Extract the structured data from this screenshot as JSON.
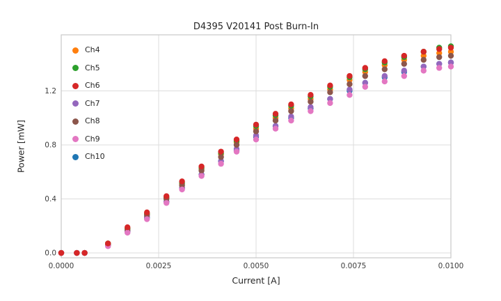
{
  "chart_data": {
    "type": "scatter",
    "title": "D4395 V20141 Post Burn-In",
    "xlabel": "Current [A]",
    "ylabel": "Power [mW]",
    "xlim": [
      0.0,
      0.01
    ],
    "ylim": [
      -0.036,
      1.615
    ],
    "grid": true,
    "legend_position": "upper-left",
    "xticks": {
      "values": [
        0.0,
        0.0025,
        0.005,
        0.0075,
        0.01
      ],
      "labels": [
        "0.0000",
        "0.0025",
        "0.0050",
        "0.0075",
        "0.0100"
      ]
    },
    "yticks": {
      "values": [
        0.0,
        0.4,
        0.8,
        1.2
      ],
      "labels": [
        "0.0",
        "0.4",
        "0.8",
        "1.2"
      ]
    },
    "x": [
      0.0,
      0.0004,
      0.0006,
      0.0012,
      0.0017,
      0.0022,
      0.0027,
      0.0031,
      0.0036,
      0.0041,
      0.0045,
      0.005,
      0.0055,
      0.0059,
      0.0064,
      0.0069,
      0.0074,
      0.0078,
      0.0083,
      0.0088,
      0.0093,
      0.0097,
      0.01
    ],
    "series": [
      {
        "name": "Ch4",
        "color": "#ff7f0e",
        "values": [
          0.0,
          0.0,
          0.0,
          0.07,
          0.18,
          0.29,
          0.41,
          0.51,
          0.62,
          0.73,
          0.82,
          0.92,
          1.0,
          1.07,
          1.14,
          1.21,
          1.28,
          1.34,
          1.39,
          1.43,
          1.46,
          1.48,
          1.49
        ]
      },
      {
        "name": "Ch5",
        "color": "#2ca02c",
        "values": [
          0.0,
          0.0,
          0.0,
          0.07,
          0.18,
          0.29,
          0.41,
          0.52,
          0.63,
          0.74,
          0.83,
          0.94,
          1.02,
          1.09,
          1.16,
          1.23,
          1.3,
          1.36,
          1.41,
          1.45,
          1.49,
          1.52,
          1.53
        ]
      },
      {
        "name": "Ch6",
        "color": "#d62728",
        "values": [
          0.0,
          0.0,
          0.0,
          0.07,
          0.19,
          0.3,
          0.42,
          0.53,
          0.64,
          0.75,
          0.84,
          0.95,
          1.03,
          1.1,
          1.17,
          1.24,
          1.31,
          1.37,
          1.42,
          1.46,
          1.49,
          1.51,
          1.52
        ]
      },
      {
        "name": "Ch7",
        "color": "#9467bd",
        "values": [
          0.0,
          0.0,
          0.0,
          0.06,
          0.16,
          0.27,
          0.38,
          0.48,
          0.58,
          0.68,
          0.77,
          0.87,
          0.94,
          1.01,
          1.08,
          1.14,
          1.21,
          1.26,
          1.31,
          1.35,
          1.38,
          1.4,
          1.41
        ]
      },
      {
        "name": "Ch8",
        "color": "#8c564b",
        "values": [
          0.0,
          0.0,
          0.0,
          0.06,
          0.17,
          0.28,
          0.4,
          0.5,
          0.61,
          0.71,
          0.8,
          0.9,
          0.98,
          1.05,
          1.12,
          1.19,
          1.25,
          1.31,
          1.36,
          1.4,
          1.43,
          1.45,
          1.46
        ]
      },
      {
        "name": "Ch9",
        "color": "#e377c2",
        "values": [
          0.0,
          0.0,
          0.0,
          0.05,
          0.15,
          0.25,
          0.37,
          0.47,
          0.57,
          0.66,
          0.75,
          0.84,
          0.92,
          0.98,
          1.05,
          1.11,
          1.17,
          1.23,
          1.27,
          1.31,
          1.35,
          1.37,
          1.38
        ]
      },
      {
        "name": "Ch10",
        "color": "#1f77b4",
        "values": [
          0.0,
          0.0,
          0.0,
          0.06,
          0.16,
          0.26,
          0.38,
          0.48,
          0.58,
          0.68,
          0.76,
          0.86,
          0.94,
          1.0,
          1.07,
          1.14,
          1.2,
          1.26,
          1.3,
          1.34,
          1.38,
          1.4,
          1.41
        ]
      }
    ]
  }
}
